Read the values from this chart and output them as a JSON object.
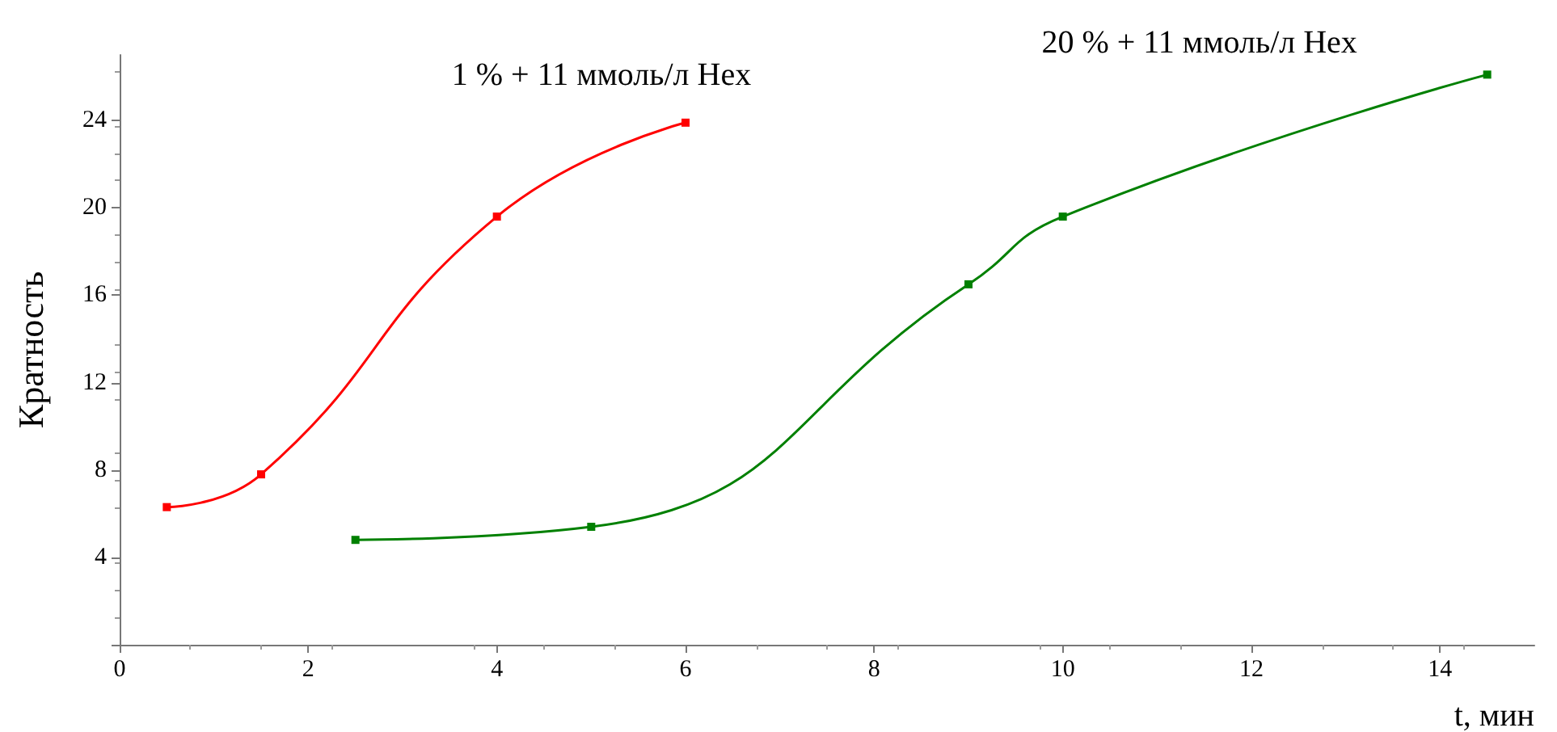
{
  "chart_data": {
    "type": "line",
    "xlabel": "t, мин",
    "ylabel": "Кратность",
    "xlim": [
      0,
      15
    ],
    "xticks": [
      0,
      2,
      4,
      6,
      8,
      10,
      12,
      14
    ],
    "ylim": [
      0,
      27
    ],
    "yticks": [
      {
        "value": 0,
        "label": null
      },
      4,
      8,
      12,
      16,
      20,
      24
    ],
    "grid": false,
    "legend": false,
    "marker": "square",
    "line_style": "solid",
    "series": [
      {
        "name": "1 % + 11 ммоль/л Hex",
        "color": "#ff0000",
        "x": [
          0.5,
          1.5,
          4,
          6
        ],
        "values": [
          6.3,
          7.8,
          19.6,
          23.9
        ]
      },
      {
        "name": "20 % + 11 ммоль/л Hex",
        "color": "#008000",
        "x": [
          2.5,
          5,
          9,
          10,
          14.5
        ],
        "values": [
          4.8,
          5.4,
          16.5,
          19.6,
          26.1
        ]
      }
    ]
  }
}
